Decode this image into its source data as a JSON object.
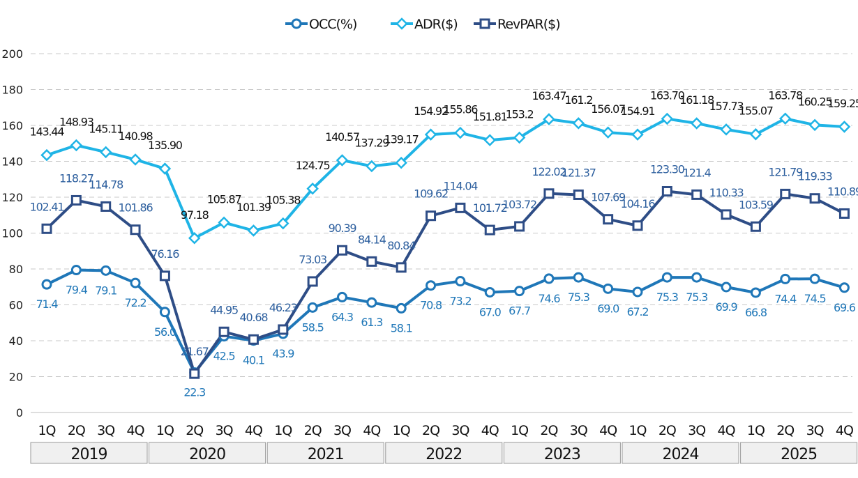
{
  "chart_data": {
    "type": "line",
    "title": "",
    "xlabel": "",
    "ylabel": "",
    "ylim": [
      0,
      200
    ],
    "yticks": [
      "0",
      "20",
      "40",
      "60",
      "80",
      "100",
      "120",
      "140",
      "160",
      "180",
      "200"
    ],
    "grid": true,
    "legend_position": "top-center",
    "quarters": [
      "1Q",
      "2Q",
      "3Q",
      "4Q"
    ],
    "years": [
      "2019",
      "2020",
      "2021",
      "2022",
      "2023",
      "2024",
      "2025"
    ],
    "categories": [
      "2019 1Q",
      "2019 2Q",
      "2019 3Q",
      "2019 4Q",
      "2020 1Q",
      "2020 2Q",
      "2020 3Q",
      "2020 4Q",
      "2021 1Q",
      "2021 2Q",
      "2021 3Q",
      "2021 4Q",
      "2022 1Q",
      "2022 2Q",
      "2022 3Q",
      "2022 4Q",
      "2023 1Q",
      "2023 2Q",
      "2023 3Q",
      "2023 4Q",
      "2024 1Q",
      "2024 2Q",
      "2024 3Q",
      "2024 4Q",
      "2025 1Q",
      "2025 2Q",
      "2025 3Q",
      "2025 4Q"
    ],
    "series": [
      {
        "name": "OCC(%)",
        "key": "occ",
        "color": "#1f77b8",
        "marker": "circle",
        "values": [
          71.4,
          79.4,
          79.1,
          72.2,
          56.0,
          22.3,
          42.5,
          40.1,
          43.9,
          58.5,
          64.3,
          61.3,
          58.1,
          70.8,
          73.2,
          67.0,
          67.7,
          74.6,
          75.3,
          69.0,
          67.2,
          75.3,
          75.3,
          69.9,
          66.8,
          74.4,
          74.5,
          69.6
        ],
        "labels": [
          "71.4",
          "79.4",
          "79.1",
          "72.2",
          "56.0",
          "22.3",
          "42.5",
          "40.1",
          "43.9",
          "58.5",
          "64.3",
          "61.3",
          "58.1",
          "70.8",
          "73.2",
          "67.0",
          "67.7",
          "74.6",
          "75.3",
          "69.0",
          "67.2",
          "75.3",
          "75.3",
          "69.9",
          "66.8",
          "74.4",
          "74.5",
          "69.6"
        ]
      },
      {
        "name": "ADR($)",
        "key": "adr",
        "color": "#1fb4e6",
        "marker": "diamond",
        "values": [
          143.44,
          148.93,
          145.11,
          140.98,
          135.9,
          97.18,
          105.87,
          101.39,
          105.38,
          124.75,
          140.57,
          137.29,
          139.17,
          154.92,
          155.86,
          151.81,
          153.2,
          163.47,
          161.2,
          156.07,
          154.91,
          163.7,
          161.18,
          157.73,
          155.07,
          163.78,
          160.25,
          159.25
        ],
        "labels": [
          "143.44",
          "148.93",
          "145.11",
          "140.98",
          "135.90",
          "97.18",
          "105.87",
          "101.39",
          "105.38",
          "124.75",
          "140.57",
          "137.29",
          "139.17",
          "154.92",
          "155.86",
          "151.81",
          "153.2",
          "163.47",
          "161.2",
          "156.07",
          "154.91",
          "163.70",
          "161.18",
          "157.73",
          "155.07",
          "163.78",
          "160.25",
          "159.25"
        ]
      },
      {
        "name": "RevPAR($)",
        "key": "rev",
        "color": "#2e4d86",
        "marker": "square",
        "values": [
          102.41,
          118.27,
          114.78,
          101.86,
          76.16,
          21.67,
          44.95,
          40.68,
          46.23,
          73.03,
          90.39,
          84.14,
          80.84,
          109.62,
          114.04,
          101.72,
          103.72,
          122.02,
          121.37,
          107.69,
          104.16,
          123.3,
          121.4,
          110.33,
          103.59,
          121.79,
          119.33,
          110.89
        ],
        "labels": [
          "102.41",
          "118.27",
          "114.78",
          "101.86",
          "76.16",
          "21.67",
          "44.95",
          "40.68",
          "46.23",
          "73.03",
          "90.39",
          "84.14",
          "80.84",
          "109.62",
          "114.04",
          "101.72",
          "103.72",
          "122.02",
          "121.37",
          "107.69",
          "104.16",
          "123.30",
          "121.4",
          "110.33",
          "103.59",
          "121.79",
          "119.33",
          "110.89"
        ]
      }
    ]
  }
}
